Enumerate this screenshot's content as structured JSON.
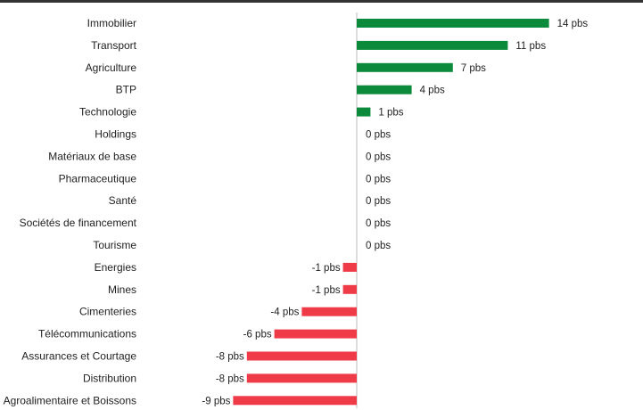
{
  "chart_data": {
    "type": "bar",
    "orientation": "horizontal",
    "categories": [
      "Immobilier",
      "Transport",
      "Agriculture",
      "BTP",
      "Technologie",
      "Holdings",
      "Matériaux de base",
      "Pharmaceutique",
      "Santé",
      "Sociétés de financement",
      "Tourisme",
      "Energies",
      "Mines",
      "Cimenteries",
      "Télécommunications",
      "Assurances et Courtage",
      "Distribution",
      "Agroalimentaire et Boissons"
    ],
    "values": [
      14,
      11,
      7,
      4,
      1,
      0,
      0,
      0,
      0,
      0,
      0,
      -1,
      -1,
      -4,
      -6,
      -8,
      -8,
      -9
    ],
    "labels": [
      "14 pbs",
      "11 pbs",
      "7 pbs",
      "4 pbs",
      "1 pbs",
      "0 pbs",
      "0 pbs",
      "0 pbs",
      "0 pbs",
      "0 pbs",
      "0 pbs",
      "-1 pbs",
      "-1 pbs",
      "-4 pbs",
      "-6 pbs",
      "-8 pbs",
      "-8 pbs",
      "-9 pbs"
    ],
    "xlim": [
      -9,
      14
    ],
    "grid": false,
    "legend": "none",
    "title": "",
    "xlabel": "",
    "ylabel": ""
  },
  "colors": {
    "positive": "#0c8a3c",
    "negative": "#ef3b48",
    "axis": "#bbbbbb",
    "text": "#222222",
    "top_rule": "#333333"
  }
}
